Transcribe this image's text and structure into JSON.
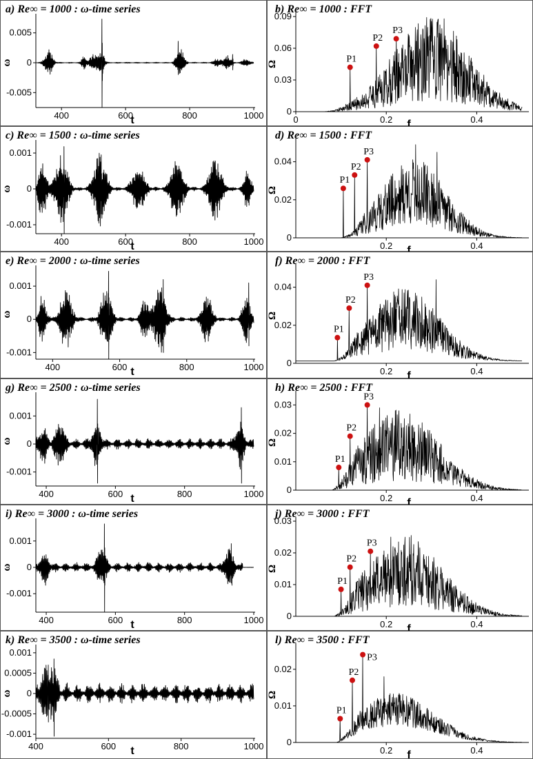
{
  "chart_data": [
    {
      "id": "a",
      "type": "line",
      "kind": "time",
      "title": "a) Re∞ = 1000 : ω-time series",
      "xlabel": "t",
      "ylabel": "ω",
      "xlim": [
        320,
        1000
      ],
      "ylim": [
        -0.0075,
        0.0075
      ],
      "xticks": [
        400,
        600,
        800,
        1000
      ],
      "xtick_labels": [
        "400",
        "600",
        "800",
        "1000"
      ],
      "yticks": [
        0.005,
        0,
        -0.005
      ],
      "ytick_labels": [
        "0.005",
        "0",
        "-0.005"
      ],
      "seed": 11,
      "base_amp": 7e-05,
      "bursts": [
        {
          "t": 360,
          "w": 14,
          "amp": 0.0015
        },
        {
          "t": 470,
          "w": 8,
          "amp": 0.0008
        },
        {
          "t": 500,
          "w": 14,
          "amp": 0.001
        },
        {
          "t": 525,
          "w": 10,
          "amp": 0.0014
        },
        {
          "t": 770,
          "w": 14,
          "amp": 0.0017
        },
        {
          "t": 888,
          "w": 14,
          "amp": 0.0005
        },
        {
          "t": 918,
          "w": 12,
          "amp": 0.0008
        },
        {
          "t": 975,
          "w": 14,
          "amp": 0.0004
        }
      ],
      "spikes": [
        {
          "t": 526,
          "hi": 0.0073,
          "lo": -0.0075
        },
        {
          "t": 764,
          "hi": 0.0036,
          "lo": -0.002
        },
        {
          "t": 934,
          "hi": 0.0014,
          "lo": -0.0012
        }
      ]
    },
    {
      "id": "b",
      "type": "line",
      "kind": "fft",
      "title": "b) Re∞ = 1000 : FFT",
      "xlabel": "f",
      "ylabel": "Ω",
      "xlim": [
        0,
        0.5
      ],
      "ylim": [
        0,
        0.09
      ],
      "xticks": [
        0,
        0.2,
        0.4
      ],
      "xtick_labels": [
        "0",
        "0.2",
        "0.4"
      ],
      "yticks": [
        0.09,
        0.06,
        0.03,
        0
      ],
      "ytick_labels": [
        "0.09",
        "0.06",
        "0.03",
        "0"
      ],
      "seed": 21,
      "start": 0.06,
      "center": 0.3,
      "width": 0.12,
      "amp": 0.05,
      "noise": 0.8,
      "baseline": 0.0,
      "peaks": [
        {
          "label": "P1",
          "f": 0.12,
          "v": 0.042
        },
        {
          "label": "P2",
          "f": 0.178,
          "v": 0.062
        },
        {
          "label": "P3",
          "f": 0.222,
          "v": 0.069
        }
      ],
      "extra": [
        {
          "f": 0.328,
          "v": 0.088
        }
      ]
    },
    {
      "id": "c",
      "type": "line",
      "kind": "time",
      "title": "c) Re∞ = 1500 : ω-time series",
      "xlabel": "t",
      "ylabel": "ω",
      "xlim": [
        320,
        1000
      ],
      "ylim": [
        -0.00125,
        0.00125
      ],
      "xticks": [
        400,
        600,
        800,
        1000
      ],
      "xtick_labels": [
        "400",
        "600",
        "800",
        "1000"
      ],
      "yticks": [
        0.001,
        0,
        -0.001
      ],
      "ytick_labels": [
        "0.001",
        "0",
        "-0.001"
      ],
      "seed": 31,
      "base_amp": 4e-05,
      "bursts": [
        {
          "t": 340,
          "w": 14,
          "amp": 0.0006
        },
        {
          "t": 400,
          "w": 22,
          "amp": 0.0007
        },
        {
          "t": 520,
          "w": 22,
          "amp": 0.0007
        },
        {
          "t": 640,
          "w": 22,
          "amp": 0.0005
        },
        {
          "t": 760,
          "w": 22,
          "amp": 0.0006
        },
        {
          "t": 880,
          "w": 22,
          "amp": 0.0007
        },
        {
          "t": 980,
          "w": 12,
          "amp": 0.0004
        }
      ],
      "spikes": [
        {
          "t": 408,
          "hi": 0.00118,
          "lo": -0.00125
        },
        {
          "t": 524,
          "hi": 0.00095,
          "lo": -0.0007
        },
        {
          "t": 888,
          "hi": 0.0007,
          "lo": -0.0004
        }
      ]
    },
    {
      "id": "d",
      "type": "line",
      "kind": "fft",
      "title": "d) Re∞ = 1500 : FFT",
      "xlabel": "f",
      "ylabel": "Ω",
      "xlim": [
        0,
        0.5
      ],
      "ylim": [
        0,
        0.05
      ],
      "xticks": [
        0.2,
        0.4
      ],
      "xtick_labels": [
        "0.2",
        "0.4"
      ],
      "yticks": [
        0.04,
        0.02,
        0
      ],
      "ytick_labels": [
        "0.04",
        "0.02",
        "0"
      ],
      "seed": 41,
      "start": 0.1,
      "center": 0.26,
      "width": 0.1,
      "amp": 0.024,
      "noise": 0.75,
      "baseline": 0.0,
      "peaks": [
        {
          "label": "P1",
          "f": 0.105,
          "v": 0.026
        },
        {
          "label": "P2",
          "f": 0.13,
          "v": 0.033
        },
        {
          "label": "P3",
          "f": 0.158,
          "v": 0.041
        }
      ],
      "extra": [
        {
          "f": 0.265,
          "v": 0.049
        },
        {
          "f": 0.312,
          "v": 0.045
        }
      ]
    },
    {
      "id": "e",
      "type": "line",
      "kind": "time",
      "title": "e) Re∞ = 2000 : ω-time series",
      "xlabel": "t",
      "ylabel": "ω",
      "xlim": [
        350,
        1000
      ],
      "ylim": [
        -0.0012,
        0.0015
      ],
      "xticks": [
        400,
        600,
        800,
        1000
      ],
      "xtick_labels": [
        "400",
        "600",
        "800",
        "1000"
      ],
      "yticks": [
        0.001,
        0,
        -0.001
      ],
      "ytick_labels": [
        "0.001",
        "0",
        "-0.001"
      ],
      "seed": 51,
      "base_amp": 5e-05,
      "bursts": [
        {
          "t": 370,
          "w": 12,
          "amp": 0.0005
        },
        {
          "t": 440,
          "w": 20,
          "amp": 0.0006
        },
        {
          "t": 560,
          "w": 18,
          "amp": 0.0007
        },
        {
          "t": 675,
          "w": 14,
          "amp": 0.0004
        },
        {
          "t": 720,
          "w": 20,
          "amp": 0.0007
        },
        {
          "t": 860,
          "w": 18,
          "amp": 0.0005
        },
        {
          "t": 978,
          "w": 14,
          "amp": 0.0005
        }
      ],
      "spikes": [
        {
          "t": 567,
          "hi": 0.00145,
          "lo": -0.0012
        },
        {
          "t": 730,
          "hi": 0.0012,
          "lo": -0.001
        },
        {
          "t": 985,
          "hi": 0.0011,
          "lo": -0.0008
        }
      ]
    },
    {
      "id": "f",
      "type": "line",
      "kind": "fft",
      "title": "f) Re∞ = 2000 : FFT",
      "xlabel": "f",
      "ylabel": "Ω",
      "xlim": [
        0,
        0.5
      ],
      "ylim": [
        0,
        0.05
      ],
      "xticks": [
        0.2,
        0.4
      ],
      "xtick_labels": [
        "0.2",
        "0.4"
      ],
      "yticks": [
        0.04,
        0.02,
        0
      ],
      "ytick_labels": [
        "0.04",
        "0.02",
        "0"
      ],
      "seed": 61,
      "start": 0.085,
      "center": 0.24,
      "width": 0.11,
      "amp": 0.022,
      "noise": 0.75,
      "baseline": 0.0012,
      "peaks": [
        {
          "label": "P1",
          "f": 0.092,
          "v": 0.0135
        },
        {
          "label": "P2",
          "f": 0.118,
          "v": 0.029
        },
        {
          "label": "P3",
          "f": 0.158,
          "v": 0.041
        }
      ],
      "extra": [
        {
          "f": 0.31,
          "v": 0.044
        },
        {
          "f": 0.22,
          "v": 0.035
        }
      ]
    },
    {
      "id": "g",
      "type": "line",
      "kind": "time",
      "title": "g) Re∞ = 2500 : ω-time series",
      "xlabel": "t",
      "ylabel": "ω",
      "xlim": [
        370,
        1000
      ],
      "ylim": [
        -0.0015,
        0.0017
      ],
      "xticks": [
        400,
        600,
        800,
        1000
      ],
      "xtick_labels": [
        "400",
        "600",
        "800",
        "1000"
      ],
      "yticks": [
        0.001,
        0,
        -0.001
      ],
      "ytick_labels": [
        "0.001",
        "0",
        "-0.001"
      ],
      "seed": 71,
      "base_amp": 0.00014,
      "bursts": [
        {
          "t": 390,
          "w": 14,
          "amp": 0.0004
        },
        {
          "t": 440,
          "w": 16,
          "amp": 0.0005
        },
        {
          "t": 545,
          "w": 14,
          "amp": 0.0005
        },
        {
          "t": 960,
          "w": 14,
          "amp": 0.0005
        }
      ],
      "spikes": [
        {
          "t": 548,
          "hi": 0.0016,
          "lo": -0.0014
        },
        {
          "t": 964,
          "hi": 0.0013,
          "lo": -0.0014
        }
      ]
    },
    {
      "id": "h",
      "type": "line",
      "kind": "fft",
      "title": "h) Re∞ = 2500 : FFT",
      "xlabel": "f",
      "ylabel": "Ω",
      "xlim": [
        0,
        0.5
      ],
      "ylim": [
        0,
        0.0335
      ],
      "xticks": [
        0.2,
        0.4
      ],
      "xtick_labels": [
        "0.2",
        "0.4"
      ],
      "yticks": [
        0.03,
        0.02,
        0.01,
        0
      ],
      "ytick_labels": [
        "0.03",
        "0.02",
        "0.01",
        "0"
      ],
      "seed": 81,
      "start": 0.08,
      "center": 0.23,
      "width": 0.12,
      "amp": 0.016,
      "noise": 0.8,
      "baseline": 0.0,
      "peaks": [
        {
          "label": "P1",
          "f": 0.095,
          "v": 0.008
        },
        {
          "label": "P2",
          "f": 0.12,
          "v": 0.019
        },
        {
          "label": "P3",
          "f": 0.158,
          "v": 0.03
        }
      ],
      "extra": [
        {
          "f": 0.185,
          "v": 0.029
        },
        {
          "f": 0.22,
          "v": 0.028
        }
      ]
    },
    {
      "id": "i",
      "type": "line",
      "kind": "time",
      "title": "i) Re∞ = 3000 : ω-time series",
      "xlabel": "t",
      "ylabel": "ω",
      "xlim": [
        370,
        1000
      ],
      "ylim": [
        -0.0017,
        0.0017
      ],
      "xticks": [
        400,
        600,
        800,
        1000
      ],
      "xtick_labels": [
        "400",
        "600",
        "800",
        "1000"
      ],
      "yticks": [
        0.001,
        0,
        -0.001
      ],
      "ytick_labels": [
        "0.001",
        "0",
        "-0.001"
      ],
      "seed": 91,
      "base_amp": 0.00013,
      "bursts": [
        {
          "t": 395,
          "w": 14,
          "amp": 0.0004
        },
        {
          "t": 560,
          "w": 14,
          "amp": 0.0005
        },
        {
          "t": 930,
          "w": 14,
          "amp": 0.0005
        }
      ],
      "spikes": [
        {
          "t": 568,
          "hi": 0.00165,
          "lo": -0.0017
        },
        {
          "t": 935,
          "hi": 0.0009,
          "lo": -0.0006
        }
      ],
      "flat_after": 968
    },
    {
      "id": "j",
      "type": "line",
      "kind": "fft",
      "title": "j) Re∞ = 3000 : FFT",
      "xlabel": "f",
      "ylabel": "Ω",
      "xlim": [
        0,
        0.5
      ],
      "ylim": [
        0,
        0.03
      ],
      "xticks": [
        0.2,
        0.4
      ],
      "xtick_labels": [
        "0.2",
        "0.4"
      ],
      "yticks": [
        0.03,
        0.02,
        0.01,
        0
      ],
      "ytick_labels": [
        "0.03",
        "0.02",
        "0.01",
        "0"
      ],
      "seed": 101,
      "start": 0.085,
      "center": 0.24,
      "width": 0.12,
      "amp": 0.014,
      "noise": 0.8,
      "baseline": 0.0,
      "peaks": [
        {
          "label": "P1",
          "f": 0.1,
          "v": 0.0085
        },
        {
          "label": "P2",
          "f": 0.12,
          "v": 0.0155
        },
        {
          "label": "P3",
          "f": 0.165,
          "v": 0.0205
        }
      ],
      "extra": [
        {
          "f": 0.255,
          "v": 0.0255
        },
        {
          "f": 0.21,
          "v": 0.025
        }
      ]
    },
    {
      "id": "k",
      "type": "line",
      "kind": "time",
      "title": "k) Re∞ = 3500 : ω-time series",
      "xlabel": "t",
      "ylabel": "ω",
      "xlim": [
        400,
        1000
      ],
      "ylim": [
        -0.0011,
        0.0011
      ],
      "xticks": [
        400,
        600,
        800,
        1000
      ],
      "xtick_labels": [
        "400",
        "600",
        "800",
        "1000"
      ],
      "yticks": [
        0.001,
        0.0005,
        0,
        -0.0005,
        -0.001
      ],
      "ytick_labels": [
        "0.001",
        "0.0005",
        "0",
        "-0.0005",
        "-0.001"
      ],
      "seed": 111,
      "base_amp": 0.00018,
      "bursts": [
        {
          "t": 425,
          "w": 14,
          "amp": 0.0004
        },
        {
          "t": 448,
          "w": 12,
          "amp": 0.0004
        }
      ],
      "spikes": [
        {
          "t": 434,
          "hi": 0.0007,
          "lo": -0.0007
        },
        {
          "t": 450,
          "hi": 0.00085,
          "lo": -0.00105
        }
      ]
    },
    {
      "id": "l",
      "type": "line",
      "kind": "fft",
      "title": "l) Re∞ = 3500 : FFT",
      "xlabel": "f",
      "ylabel": "Ω",
      "xlim": [
        0,
        0.5
      ],
      "ylim": [
        0,
        0.026
      ],
      "xticks": [
        0.2,
        0.4
      ],
      "xtick_labels": [
        "0.2",
        "0.4"
      ],
      "yticks": [
        0.02,
        0.01,
        0
      ],
      "ytick_labels": [
        "0.02",
        "0.01",
        "0"
      ],
      "seed": 121,
      "start": 0.09,
      "center": 0.22,
      "width": 0.12,
      "amp": 0.009,
      "noise": 0.5,
      "baseline": 0.0,
      "peaks": [
        {
          "label": "P1",
          "f": 0.098,
          "v": 0.0065
        },
        {
          "label": "P2",
          "f": 0.125,
          "v": 0.017
        },
        {
          "label": "P3",
          "f": 0.148,
          "v": 0.024
        }
      ],
      "extra": [
        {
          "f": 0.195,
          "v": 0.018
        }
      ]
    }
  ],
  "colors": {
    "line": "#000000",
    "marker": "#cc1111",
    "frame": "#555555",
    "axis": "#000000"
  }
}
